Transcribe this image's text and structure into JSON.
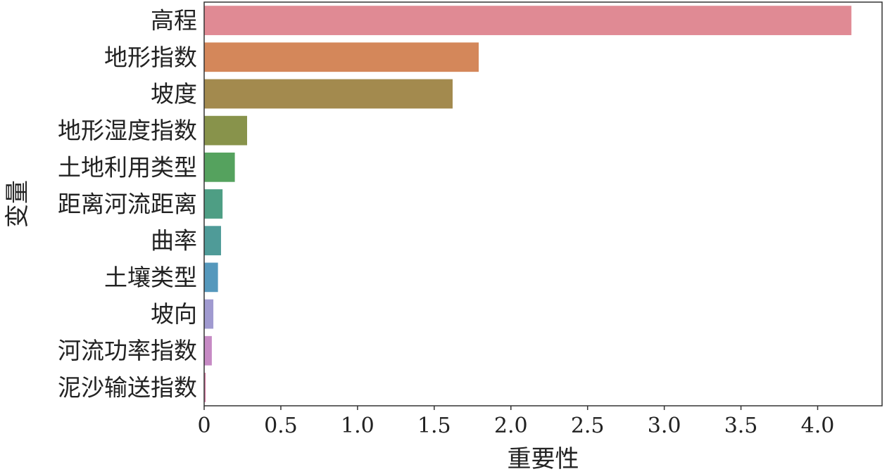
{
  "chart_data": {
    "type": "bar",
    "orientation": "horizontal",
    "categories": [
      "高程",
      "地形指数",
      "坡度",
      "地形湿度指数",
      "土地利用类型",
      "距离河流距离",
      "曲率",
      "土壤类型",
      "坡向",
      "河流功率指数",
      "泥沙输送指数"
    ],
    "values": [
      4.22,
      1.79,
      1.62,
      0.28,
      0.2,
      0.12,
      0.11,
      0.09,
      0.06,
      0.05,
      0.01
    ],
    "colors": [
      "#e08a94",
      "#d4875a",
      "#a38a4e",
      "#88934b",
      "#55a25e",
      "#4e9e84",
      "#4f9b98",
      "#5598bc",
      "#a09ad0",
      "#c68ac4",
      "#d982a8"
    ],
    "xlabel": "重要性",
    "ylabel": "变量",
    "xlim": [
      0,
      4.42
    ],
    "xticks": [
      0,
      0.5,
      1.0,
      1.5,
      2.0,
      2.5,
      3.0,
      3.5,
      4.0
    ],
    "xtick_labels": [
      "0",
      "0.5",
      "1.0",
      "1.5",
      "2.0",
      "2.5",
      "3.0",
      "3.5",
      "4.0"
    ],
    "grid": false,
    "legend": "none"
  }
}
